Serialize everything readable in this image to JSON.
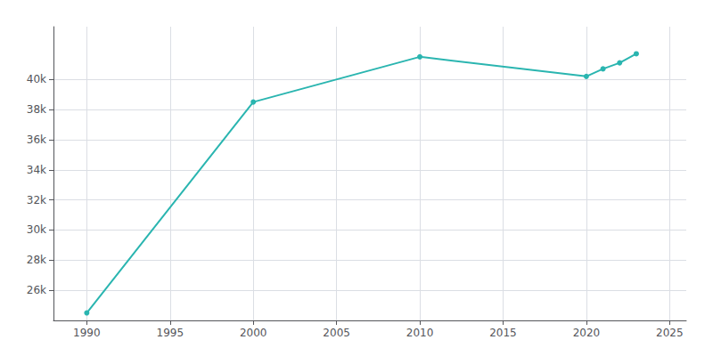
{
  "chart_data": {
    "type": "line",
    "x": [
      1990,
      2000,
      2010,
      2020,
      2021,
      2022,
      2023
    ],
    "values": [
      24500,
      38500,
      41500,
      40200,
      40700,
      41100,
      41700
    ],
    "color": "#2ab5b0",
    "marker": "circle",
    "xlim": [
      1988,
      2026
    ],
    "xticks": [
      1990,
      1995,
      2000,
      2005,
      2010,
      2015,
      2020,
      2025
    ],
    "ylim": [
      24000,
      43500
    ],
    "yticks": [
      {
        "value": 26000,
        "label": "26k"
      },
      {
        "value": 28000,
        "label": "28k"
      },
      {
        "value": 30000,
        "label": "30k"
      },
      {
        "value": 32000,
        "label": "32k"
      },
      {
        "value": 34000,
        "label": "34k"
      },
      {
        "value": 36000,
        "label": "36k"
      },
      {
        "value": 38000,
        "label": "38k"
      },
      {
        "value": 40000,
        "label": "40k"
      }
    ],
    "grid": true
  }
}
